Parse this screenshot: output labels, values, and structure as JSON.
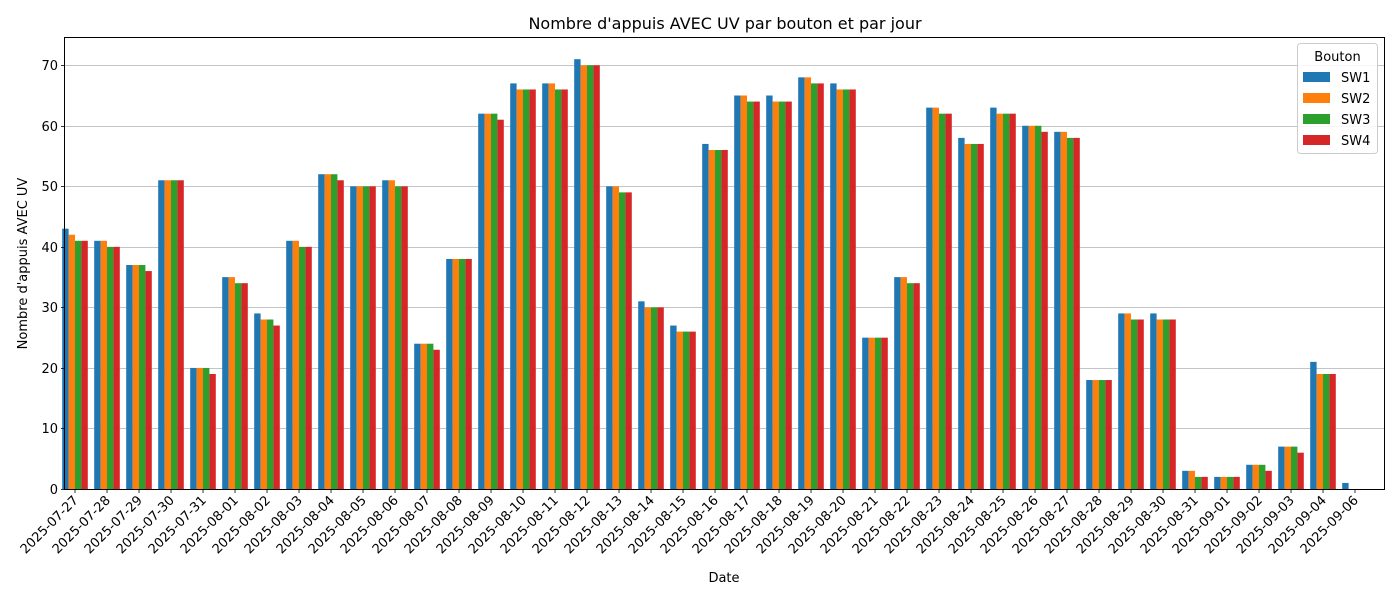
{
  "chart_data": {
    "type": "bar",
    "title": "Nombre d'appuis AVEC UV par bouton et par jour",
    "xlabel": "Date",
    "ylabel": "Nombre d'appuis AVEC UV",
    "ylim": [
      0,
      74.5
    ],
    "yticks": [
      0,
      10,
      20,
      30,
      40,
      50,
      60,
      70
    ],
    "grid": "horizontal",
    "legend_title": "Bouton",
    "legend_position": "top-right",
    "categories": [
      "2025-07-27",
      "2025-07-28",
      "2025-07-29",
      "2025-07-30",
      "2025-07-31",
      "2025-08-01",
      "2025-08-02",
      "2025-08-03",
      "2025-08-04",
      "2025-08-05",
      "2025-08-06",
      "2025-08-07",
      "2025-08-08",
      "2025-08-09",
      "2025-08-10",
      "2025-08-11",
      "2025-08-12",
      "2025-08-13",
      "2025-08-14",
      "2025-08-15",
      "2025-08-16",
      "2025-08-17",
      "2025-08-18",
      "2025-08-19",
      "2025-08-20",
      "2025-08-21",
      "2025-08-22",
      "2025-08-23",
      "2025-08-24",
      "2025-08-25",
      "2025-08-26",
      "2025-08-27",
      "2025-08-28",
      "2025-08-29",
      "2025-08-30",
      "2025-08-31",
      "2025-09-01",
      "2025-09-02",
      "2025-09-03",
      "2025-09-04",
      "2025-09-06"
    ],
    "series": [
      {
        "name": "SW1",
        "color": "#1f77b4",
        "values": [
          43,
          41,
          37,
          51,
          20,
          35,
          29,
          41,
          52,
          50,
          51,
          24,
          38,
          62,
          67,
          67,
          71,
          50,
          31,
          27,
          57,
          65,
          65,
          68,
          67,
          25,
          35,
          63,
          58,
          63,
          60,
          59,
          18,
          29,
          29,
          3,
          2,
          4,
          7,
          21,
          1
        ]
      },
      {
        "name": "SW2",
        "color": "#ff7f0e",
        "values": [
          42,
          41,
          37,
          51,
          20,
          35,
          28,
          41,
          52,
          50,
          51,
          24,
          38,
          62,
          66,
          67,
          70,
          50,
          30,
          26,
          56,
          65,
          64,
          68,
          66,
          25,
          35,
          63,
          57,
          62,
          60,
          59,
          18,
          29,
          28,
          3,
          2,
          4,
          7,
          19,
          0
        ]
      },
      {
        "name": "SW3",
        "color": "#2ca02c",
        "values": [
          41,
          40,
          37,
          51,
          20,
          34,
          28,
          40,
          52,
          50,
          50,
          24,
          38,
          62,
          66,
          66,
          70,
          49,
          30,
          26,
          56,
          64,
          64,
          67,
          66,
          25,
          34,
          62,
          57,
          62,
          60,
          58,
          18,
          28,
          28,
          2,
          2,
          4,
          7,
          19,
          0
        ]
      },
      {
        "name": "SW4",
        "color": "#d62728",
        "values": [
          41,
          40,
          36,
          51,
          19,
          34,
          27,
          40,
          51,
          50,
          50,
          23,
          38,
          61,
          66,
          66,
          70,
          49,
          30,
          26,
          56,
          64,
          64,
          67,
          66,
          25,
          34,
          62,
          57,
          62,
          59,
          58,
          18,
          28,
          28,
          2,
          2,
          3,
          6,
          19,
          0
        ]
      }
    ]
  }
}
